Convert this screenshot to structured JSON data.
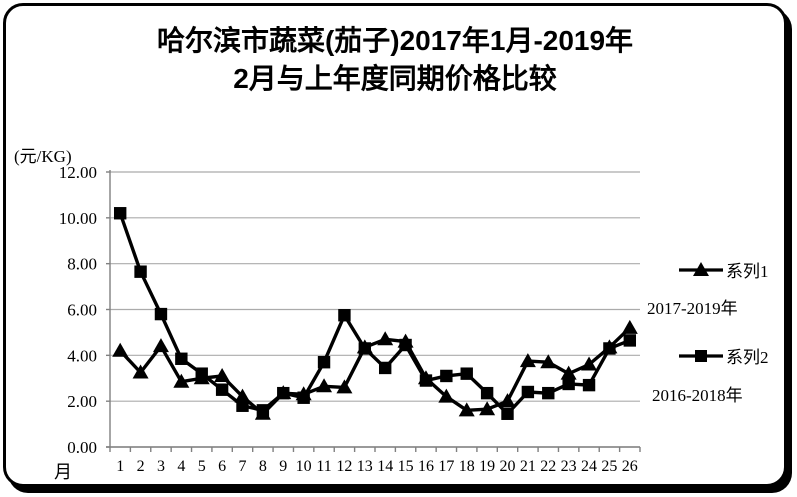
{
  "frame": {
    "border_color": "#000000",
    "background": "#ffffff"
  },
  "chart_data": {
    "type": "line",
    "title": "哈尔滨市蔬菜(茄子)2017年1月-2019年2月与上年度同期价格比较",
    "title_lines": [
      "哈尔滨市蔬菜(茄子)2017年1月-2019年",
      "2月与上年度同期价格比较"
    ],
    "y_unit_label": "(元/KG)",
    "x_axis_label": "月",
    "categories": [
      1,
      2,
      3,
      4,
      5,
      6,
      7,
      8,
      9,
      10,
      11,
      12,
      13,
      14,
      15,
      16,
      17,
      18,
      19,
      20,
      21,
      22,
      23,
      24,
      25,
      26
    ],
    "ylim": [
      0,
      12
    ],
    "y_tick_step": 2,
    "y_tick_labels": [
      "0.00",
      "2.00",
      "4.00",
      "6.00",
      "8.00",
      "10.00",
      "12.00"
    ],
    "grid": true,
    "legend_position": "right",
    "colors": {
      "series_line": "#000000",
      "axis": "#808080",
      "gridline": "#ababab",
      "text": "#000000"
    },
    "series": [
      {
        "name": "系列1",
        "period_label": "2017-2019年",
        "marker": "triangle",
        "values": [
          4.2,
          3.25,
          4.4,
          2.85,
          3.0,
          3.1,
          2.2,
          1.45,
          2.35,
          2.3,
          2.65,
          2.6,
          4.35,
          4.7,
          4.6,
          3.0,
          2.2,
          1.6,
          1.65,
          2.0,
          3.75,
          3.7,
          3.2,
          3.6,
          4.35,
          5.2
        ]
      },
      {
        "name": "系列2",
        "period_label": "2016-2018年",
        "marker": "square",
        "values": [
          10.2,
          7.65,
          5.8,
          3.85,
          3.2,
          2.5,
          1.8,
          1.6,
          2.35,
          2.15,
          3.7,
          5.75,
          4.3,
          3.45,
          4.45,
          2.9,
          3.1,
          3.2,
          2.35,
          1.45,
          2.4,
          2.35,
          2.75,
          2.7,
          4.3,
          4.65
        ]
      }
    ]
  }
}
